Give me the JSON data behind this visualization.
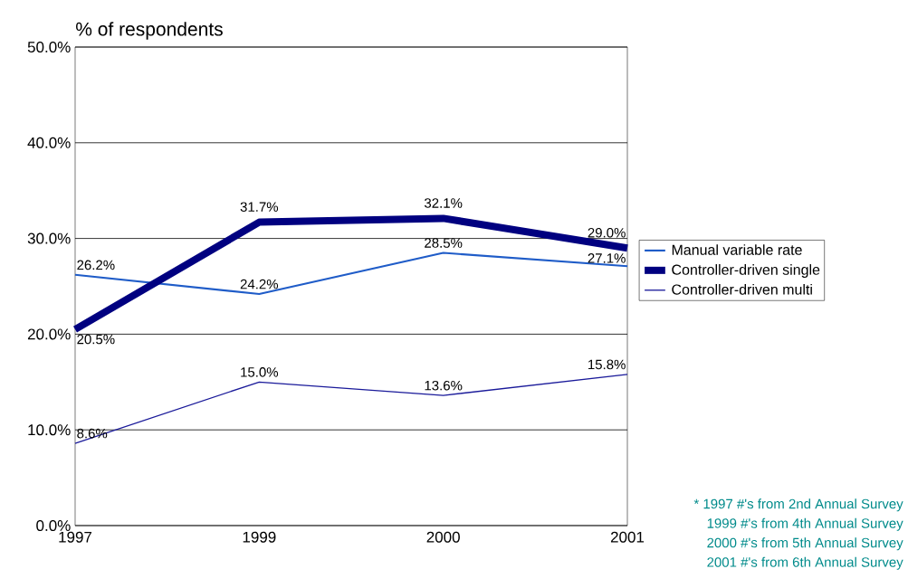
{
  "chart_data": {
    "type": "line",
    "ylabel": "% of respondents",
    "categories": [
      "1997",
      "1999",
      "2000",
      "2001"
    ],
    "series": [
      {
        "name": "Manual variable rate",
        "color": "#1f5cc8",
        "values": [
          26.2,
          24.2,
          28.5,
          27.1
        ],
        "value_labels": [
          "26.2%",
          "24.2%",
          "28.5%",
          "27.1%"
        ]
      },
      {
        "name": "Controller-driven single",
        "color": "#000080",
        "values": [
          20.5,
          31.7,
          32.1,
          29.0
        ],
        "value_labels": [
          "20.5%",
          "31.7%",
          "32.1%",
          "29.0%"
        ]
      },
      {
        "name": "Controller-driven multi",
        "color": "#1a1a9a",
        "values": [
          8.6,
          15.0,
          13.6,
          15.8
        ],
        "value_labels": [
          "8.6%",
          "15.0%",
          "13.6%",
          "15.8%"
        ]
      }
    ],
    "ylim": [
      0,
      50
    ],
    "yticks": [
      {
        "value": 0,
        "label": "0.0%"
      },
      {
        "value": 10,
        "label": "10.0%"
      },
      {
        "value": 20,
        "label": "20.0%"
      },
      {
        "value": 30,
        "label": "30.0%"
      },
      {
        "value": 40,
        "label": "40.0%"
      },
      {
        "value": 50,
        "label": "50.0%"
      }
    ],
    "grid": "y",
    "legend": "right",
    "annotations": [
      "* 1997 #'s from 2nd Annual Survey",
      "1999 #'s from 4th Annual Survey",
      "2000 #'s from 5th Annual Survey",
      "2001 #'s from 6th Annual Survey"
    ]
  }
}
